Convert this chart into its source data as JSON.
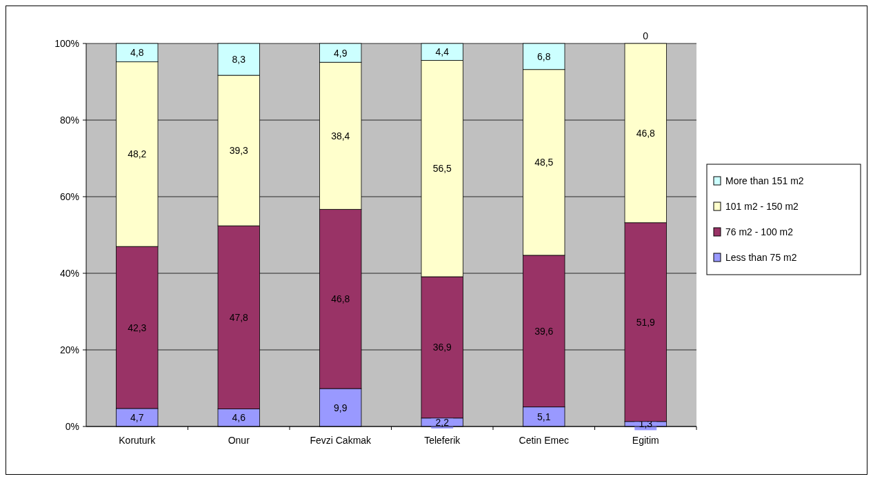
{
  "chart_data": {
    "type": "bar",
    "stacked": true,
    "categories": [
      "Koruturk",
      "Onur",
      "Fevzi Cakmak",
      "Teleferik",
      "Cetin Emec",
      "Egitim"
    ],
    "series": [
      {
        "name": "Less than 75 m2",
        "color": "#9999ff",
        "values": [
          4.7,
          4.6,
          9.9,
          2.2,
          5.1,
          1.3
        ],
        "value_labels": [
          "4,7",
          "4,6",
          "9,9",
          "2,2",
          "5,1",
          "1,3"
        ]
      },
      {
        "name": "76 m2 - 100 m2",
        "color": "#993366",
        "values": [
          42.3,
          47.8,
          46.8,
          36.9,
          39.6,
          51.9
        ],
        "value_labels": [
          "42,3",
          "47,8",
          "46,8",
          "36,9",
          "39,6",
          "51,9"
        ]
      },
      {
        "name": "101 m2 - 150 m2",
        "color": "#ffffcc",
        "values": [
          48.2,
          39.3,
          38.4,
          56.5,
          48.5,
          46.8
        ],
        "value_labels": [
          "48,2",
          "39,3",
          "38,4",
          "56,5",
          "48,5",
          "46,8"
        ]
      },
      {
        "name": "More than 151 m2",
        "color": "#ccffff",
        "values": [
          4.8,
          8.3,
          4.9,
          4.4,
          6.8,
          0
        ],
        "value_labels": [
          "4,8",
          "8,3",
          "4,9",
          "4,4",
          "6,8",
          "0"
        ]
      }
    ],
    "ylim": [
      0,
      100
    ],
    "yticks": [
      {
        "value": 0,
        "label": "0%"
      },
      {
        "value": 20,
        "label": "20%"
      },
      {
        "value": 40,
        "label": "40%"
      },
      {
        "value": 60,
        "label": "60%"
      },
      {
        "value": 80,
        "label": "80%"
      },
      {
        "value": 100,
        "label": "100%"
      }
    ],
    "grid": "y",
    "legend": "right"
  }
}
